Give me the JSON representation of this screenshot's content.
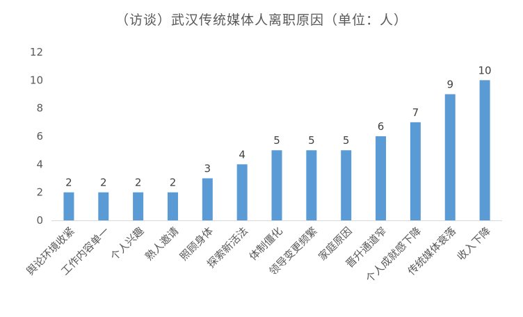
{
  "chart_data": {
    "type": "bar",
    "title": "（访谈）武汉传统媒体人离职原因（单位：人）",
    "xlabel": "",
    "ylabel": "",
    "ylim": [
      0,
      12
    ],
    "yticks": [
      0,
      2,
      4,
      6,
      8,
      10,
      12
    ],
    "grid": false,
    "legend": "none",
    "bar_color": "#5b9bd5",
    "categories": [
      "舆论环境收紧",
      "工作内容单一",
      "个人兴趣",
      "熟人邀请",
      "照顾身体",
      "探索新活法",
      "体制僵化",
      "领导变更频繁",
      "家庭原因",
      "晋升通道窄",
      "个人成就感下降",
      "传统媒体衰落",
      "收入下降"
    ],
    "values": [
      2,
      2,
      2,
      2,
      3,
      4,
      5,
      5,
      5,
      6,
      7,
      9,
      10
    ],
    "data_labels": true
  }
}
